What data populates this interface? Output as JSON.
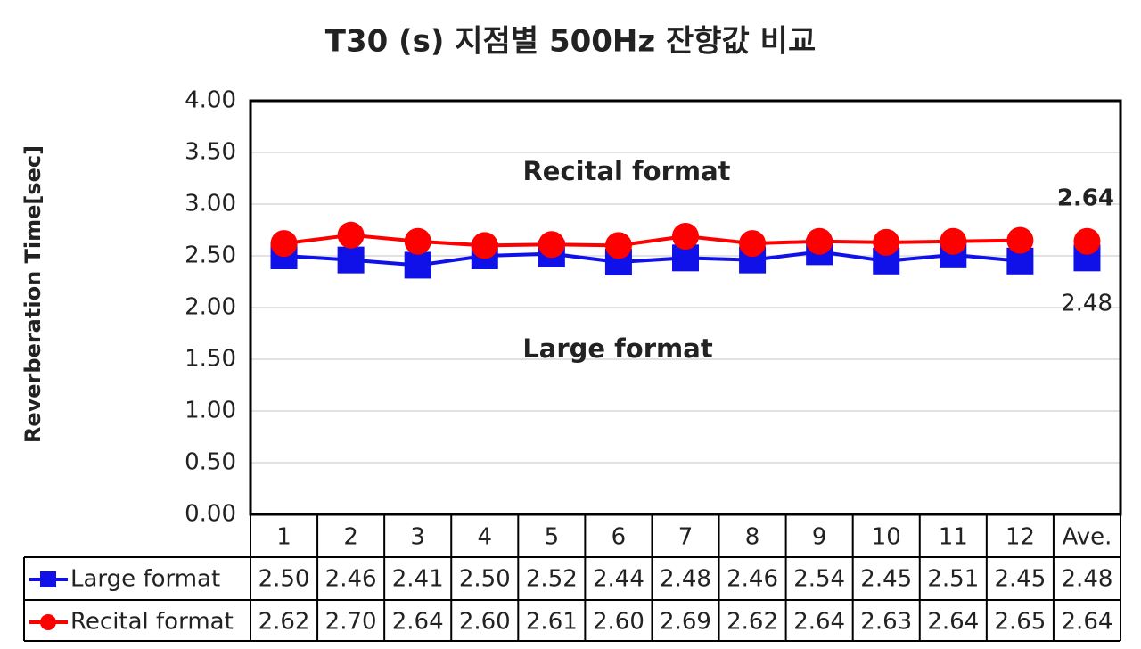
{
  "chart_data": {
    "type": "line",
    "title": "T30 (s) 지점별 500Hz 잔향값 비교",
    "y_label": "Reverberation Time[sec]",
    "categories": [
      "1",
      "2",
      "3",
      "4",
      "5",
      "6",
      "7",
      "8",
      "9",
      "10",
      "11",
      "12",
      "Ave."
    ],
    "ylim": [
      0,
      4
    ],
    "yticks": [
      {
        "value": 0,
        "label": "0.00"
      },
      {
        "value": 0.5,
        "label": "0.50"
      },
      {
        "value": 1,
        "label": "1.00"
      },
      {
        "value": 1.5,
        "label": "1.50"
      },
      {
        "value": 2,
        "label": "2.00"
      },
      {
        "value": 2.5,
        "label": "2.50"
      },
      {
        "value": 3,
        "label": "3.00"
      },
      {
        "value": 3.5,
        "label": "3.50"
      },
      {
        "value": 4,
        "label": "4.00"
      }
    ],
    "grid": true,
    "series": [
      {
        "name": "Large format",
        "color": "#1010e8",
        "marker": "square",
        "values": [
          2.5,
          2.46,
          2.41,
          2.5,
          2.52,
          2.44,
          2.48,
          2.46,
          2.54,
          2.45,
          2.51,
          2.45,
          2.48
        ],
        "value_labels": [
          "2.50",
          "2.46",
          "2.41",
          "2.50",
          "2.52",
          "2.44",
          "2.48",
          "2.46",
          "2.54",
          "2.45",
          "2.51",
          "2.45",
          "2.48"
        ]
      },
      {
        "name": "Recital format",
        "color": "#ff0000",
        "marker": "circle",
        "values": [
          2.62,
          2.7,
          2.64,
          2.6,
          2.61,
          2.6,
          2.69,
          2.62,
          2.64,
          2.63,
          2.64,
          2.65,
          2.64
        ],
        "value_labels": [
          "2.62",
          "2.70",
          "2.64",
          "2.60",
          "2.61",
          "2.60",
          "2.69",
          "2.62",
          "2.64",
          "2.63",
          "2.64",
          "2.65",
          "2.64"
        ]
      }
    ]
  }
}
